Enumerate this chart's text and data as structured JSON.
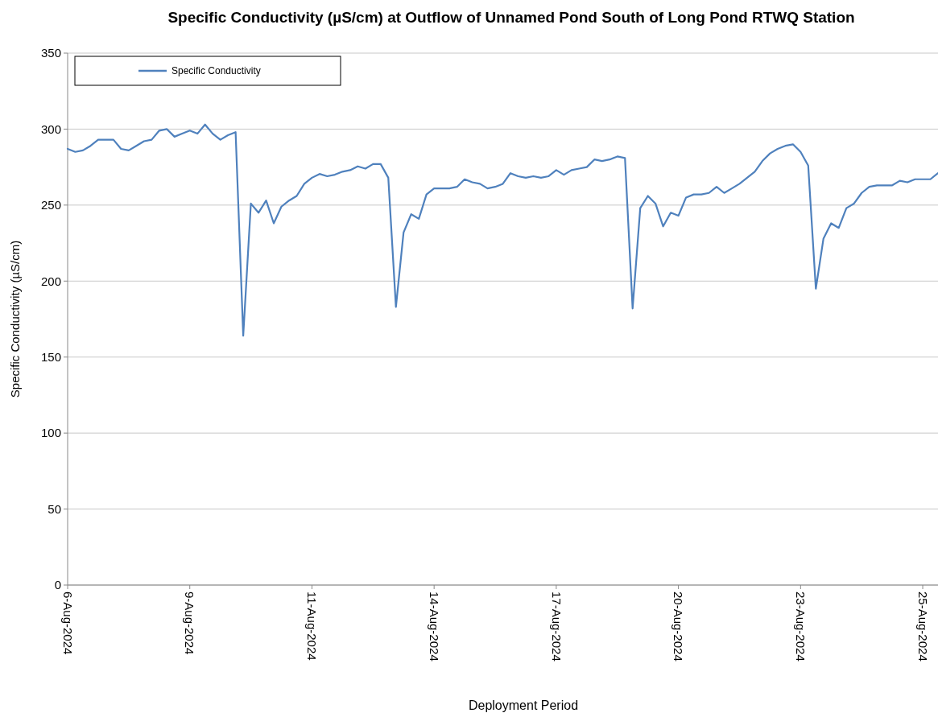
{
  "chart_data": {
    "type": "line",
    "title": "Specific Conductivity (µS/cm) at Outflow of Unnamed Pond South of Long Pond RTWQ Station",
    "xlabel": "Deployment Period",
    "ylabel": "Specific Conductivity (µS/cm)",
    "categories": [
      "6-Aug-2024",
      null,
      null,
      null,
      null,
      null,
      null,
      null,
      null,
      null,
      null,
      null,
      null,
      null,
      null,
      null,
      "9-Aug-2024",
      null,
      null,
      null,
      null,
      null,
      null,
      null,
      null,
      null,
      null,
      null,
      null,
      null,
      null,
      null,
      "11-Aug-2024",
      null,
      null,
      null,
      null,
      null,
      null,
      null,
      null,
      null,
      null,
      null,
      null,
      null,
      null,
      null,
      "14-Aug-2024",
      null,
      null,
      null,
      null,
      null,
      null,
      null,
      null,
      null,
      null,
      null,
      null,
      null,
      null,
      null,
      "17-Aug-2024",
      null,
      null,
      null,
      null,
      null,
      null,
      null,
      null,
      null,
      null,
      null,
      null,
      null,
      null,
      null,
      "20-Aug-2024",
      null,
      null,
      null,
      null,
      null,
      null,
      null,
      null,
      null,
      null,
      null,
      null,
      null,
      null,
      null,
      "23-Aug-2024",
      null,
      null,
      null,
      null,
      null,
      null,
      null,
      null,
      null,
      null,
      null,
      null,
      null,
      null,
      null,
      "25-Aug-2024",
      null,
      null
    ],
    "series": [
      {
        "name": "Specific Conductivity",
        "color": "#4f81bd",
        "values": [
          287,
          285,
          286,
          289,
          293,
          293,
          293,
          287,
          286,
          289,
          292,
          293,
          299,
          300,
          295,
          297,
          299,
          297,
          303,
          297,
          293,
          296,
          298,
          164,
          251,
          245,
          253,
          238,
          249,
          253,
          256,
          264,
          268,
          270.5,
          269,
          270,
          272,
          273,
          275.5,
          274,
          277,
          277,
          268,
          183,
          232,
          244,
          241,
          257,
          261,
          261,
          261,
          262,
          267,
          265,
          264,
          261,
          262,
          264,
          271,
          269,
          268,
          269,
          268,
          269,
          273,
          270,
          273,
          274,
          275,
          280,
          279,
          280,
          282,
          281,
          182,
          248,
          256,
          251,
          236,
          245,
          243,
          255,
          257,
          257,
          258,
          262,
          258,
          261,
          264,
          268,
          272,
          279,
          284,
          287,
          289,
          290,
          285,
          276,
          195,
          228,
          238,
          235,
          248,
          251,
          258,
          262,
          263,
          263,
          263,
          266,
          265,
          267,
          267,
          267,
          271
        ]
      }
    ],
    "ylim": [
      0,
      350
    ],
    "yticks": [
      0,
      50,
      100,
      150,
      200,
      250,
      300,
      350
    ],
    "grid": "y",
    "legend": "top left",
    "marker": "none",
    "line_style": "solid"
  }
}
